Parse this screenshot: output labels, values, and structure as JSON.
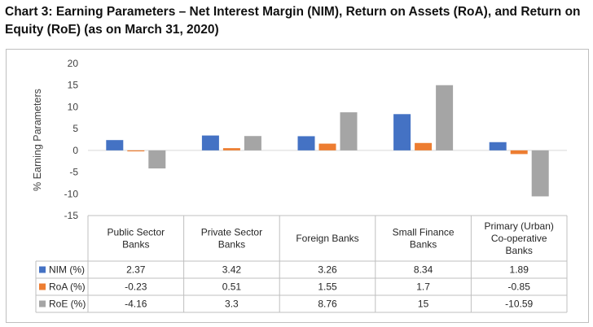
{
  "title": "Chart 3: Earning Parameters – Net Interest Margin (NIM), Return on Assets (RoA), and Return on Equity (RoE) (as on March 31, 2020)",
  "chart_data": {
    "type": "bar",
    "title": "Chart 3: Earning Parameters – Net Interest Margin (NIM), Return on Assets (RoA), and Return on Equity (RoE) (as on March 31, 2020)",
    "xlabel": "",
    "ylabel": "% Earning Parameters",
    "ylim": [
      -15,
      20
    ],
    "yticks": [
      20,
      15,
      10,
      5,
      0,
      -5,
      -10,
      -15
    ],
    "grid": false,
    "legend": "data-table",
    "categories": [
      [
        "Public Sector",
        "Banks"
      ],
      [
        "Private Sector",
        "Banks"
      ],
      [
        "Foreign Banks"
      ],
      [
        "Small Finance",
        "Banks"
      ],
      [
        "Primary (Urban)",
        "Co-operative",
        "Banks"
      ]
    ],
    "series": [
      {
        "name": "NIM (%)",
        "color": "#4472c4",
        "values": [
          2.37,
          3.42,
          3.26,
          8.34,
          1.89
        ],
        "labels": [
          "2.37",
          "3.42",
          "3.26",
          "8.34",
          "1.89"
        ]
      },
      {
        "name": "RoA (%)",
        "color": "#ed7d31",
        "values": [
          -0.23,
          0.51,
          1.55,
          1.7,
          -0.85
        ],
        "labels": [
          "-0.23",
          "0.51",
          "1.55",
          "1.7",
          "-0.85"
        ]
      },
      {
        "name": "RoE (%)",
        "color": "#a5a5a5",
        "values": [
          -4.16,
          3.3,
          8.76,
          15,
          -10.59
        ],
        "labels": [
          "-4.16",
          "3.3",
          "8.76",
          "15",
          "-10.59"
        ]
      }
    ]
  }
}
